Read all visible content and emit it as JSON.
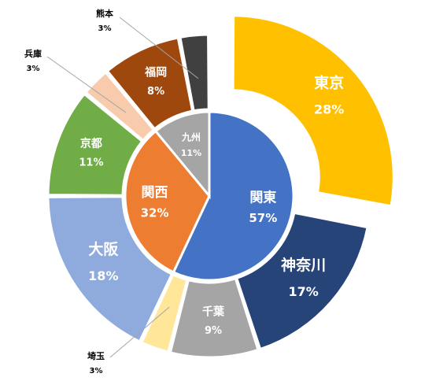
{
  "chart_data": {
    "type": "pie",
    "subtype": "sunburst-donut",
    "inner": [
      {
        "name": "関東",
        "value": 57,
        "label": "57%",
        "color": "#4472C4",
        "text_color": "#ffffff"
      },
      {
        "name": "関西",
        "value": 32,
        "label": "32%",
        "color": "#ED7D31",
        "text_color": "#ffffff"
      },
      {
        "name": "九州",
        "value": 11,
        "label": "11%",
        "color": "#A5A5A5",
        "text_color": "#ffffff"
      }
    ],
    "outer": [
      {
        "name": "東京",
        "value": 28,
        "label": "28%",
        "color": "#FFC000",
        "text_color": "#ffffff",
        "parent": "関東",
        "exploded": true
      },
      {
        "name": "神奈川",
        "value": 17,
        "label": "17%",
        "color": "#264478",
        "text_color": "#ffffff",
        "parent": "関東"
      },
      {
        "name": "千葉",
        "value": 9,
        "label": "9%",
        "color": "#A5A5A5",
        "text_color": "#ffffff",
        "parent": "関東"
      },
      {
        "name": "埼玉",
        "value": 3,
        "label": "3%",
        "color": "#FFE699",
        "text_color": "#000000",
        "parent": "関東",
        "callout": true
      },
      {
        "name": "大阪",
        "value": 18,
        "label": "18%",
        "color": "#8FAADC",
        "text_color": "#ffffff",
        "parent": "関西"
      },
      {
        "name": "京都",
        "value": 11,
        "label": "11%",
        "color": "#70AD47",
        "text_color": "#ffffff",
        "parent": "関西"
      },
      {
        "name": "兵庫",
        "value": 3,
        "label": "3%",
        "color": "#F8CBAD",
        "text_color": "#000000",
        "parent": "関西",
        "callout": true
      },
      {
        "name": "福岡",
        "value": 8,
        "label": "8%",
        "color": "#9E480E",
        "text_color": "#ffffff",
        "parent": "九州"
      },
      {
        "name": "熊本",
        "value": 3,
        "label": "3%",
        "color": "#404040",
        "text_color": "#000000",
        "parent": "九州",
        "callout": true
      }
    ]
  }
}
